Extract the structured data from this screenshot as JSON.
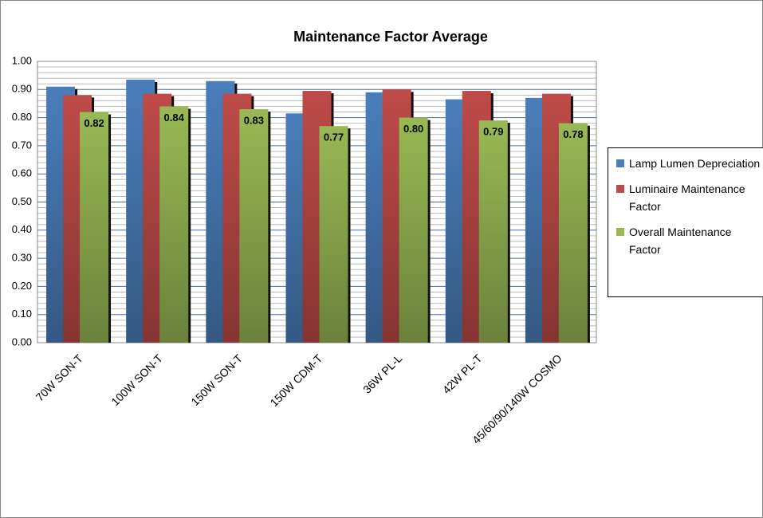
{
  "chart_data": {
    "type": "bar",
    "title": "Maintenance Factor Average",
    "categories": [
      "70W SON-T",
      "100W SON-T",
      "150W SON-T",
      "150W CDM-T",
      "36W PL-L",
      "42W PL-T",
      "45/60/90/140W COSMO"
    ],
    "series": [
      {
        "name": "Lamp Lumen Depreciation",
        "color": "#4a7ebb",
        "values": [
          0.91,
          0.935,
          0.93,
          0.815,
          0.89,
          0.865,
          0.87
        ]
      },
      {
        "name": "Luminaire Maintenance Factor",
        "color": "#be4b48",
        "values": [
          0.88,
          0.885,
          0.885,
          0.895,
          0.9,
          0.895,
          0.885
        ]
      },
      {
        "name": "Overall Maintenance Factor",
        "color": "#98b954",
        "values": [
          0.82,
          0.84,
          0.83,
          0.77,
          0.8,
          0.79,
          0.78
        ],
        "value_labels": [
          "0.82",
          "0.84",
          "0.83",
          "0.77",
          "0.80",
          "0.79",
          "0.78"
        ]
      }
    ],
    "ylim": [
      0,
      1
    ],
    "yticks": [
      {
        "value": 0,
        "label": "0.00"
      },
      {
        "value": 0.1,
        "label": "0.10"
      },
      {
        "value": 0.2,
        "label": "0.20"
      },
      {
        "value": 0.3,
        "label": "0.30"
      },
      {
        "value": 0.4,
        "label": "0.40"
      },
      {
        "value": 0.5,
        "label": "0.50"
      },
      {
        "value": 0.6,
        "label": "0.60"
      },
      {
        "value": 0.7,
        "label": "0.70"
      },
      {
        "value": 0.8,
        "label": "0.80"
      },
      {
        "value": 0.9,
        "label": "0.90"
      },
      {
        "value": 1,
        "label": "1.00"
      }
    ],
    "grid": true,
    "legend": "right"
  }
}
